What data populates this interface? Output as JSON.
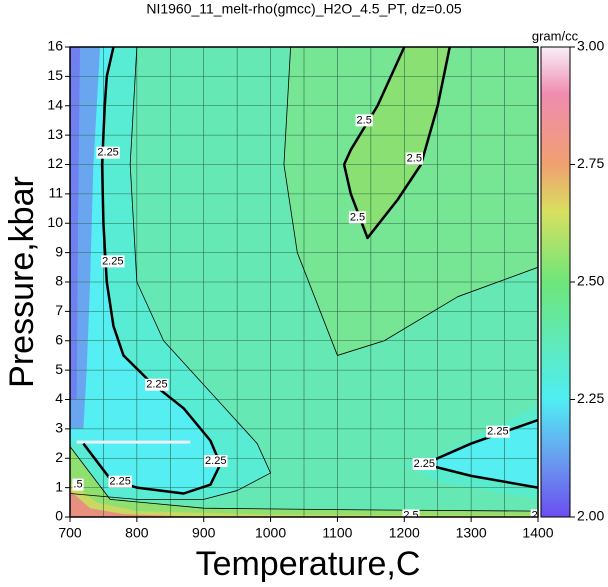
{
  "chart_data": {
    "type": "contour",
    "title": "NI1960_11_melt-rho(gmcc)_H2O_4.5_PT, dz=0.05",
    "xlabel": "Temperature,C",
    "ylabel": "Pressure,kbar",
    "xlim": [
      700,
      1400
    ],
    "ylim": [
      0,
      16
    ],
    "xticks": [
      700,
      800,
      900,
      1000,
      1100,
      1200,
      1300,
      1400
    ],
    "yticks": [
      0,
      1,
      2,
      3,
      4,
      5,
      6,
      7,
      8,
      9,
      10,
      11,
      12,
      13,
      14,
      15,
      16
    ],
    "xgrid": [
      700,
      750,
      800,
      850,
      900,
      950,
      1000,
      1050,
      1100,
      1150,
      1200,
      1250,
      1300,
      1350,
      1400
    ],
    "grid_color": "#2a6a4a",
    "regions": [
      {
        "color": "#66e8b4",
        "x": [
          700,
          1400,
          1400,
          700
        ],
        "y": [
          0,
          0,
          16,
          16
        ]
      },
      {
        "color": "#76e594",
        "x": [
          1030,
          1020,
          1040,
          1100,
          1170,
          1280,
          1400,
          1400
        ],
        "y": [
          16,
          12,
          9,
          5.5,
          6,
          7.5,
          8.5,
          16
        ]
      },
      {
        "color": "#8ae072",
        "x": [
          1200,
          1160,
          1120,
          1110,
          1120,
          1145,
          1190,
          1225,
          1250,
          1268
        ],
        "y": [
          16,
          14,
          12.5,
          12,
          11,
          9.5,
          10.8,
          12,
          14,
          16
        ]
      },
      {
        "color": "#58ecd4",
        "x": [
          700,
          800,
          790,
          800,
          840,
          920,
          980,
          1000,
          950,
          900,
          800,
          700
        ],
        "y": [
          16,
          16,
          12,
          8,
          6,
          4,
          2.5,
          1.5,
          0.9,
          0.6,
          0.6,
          0.8
        ]
      },
      {
        "color": "#55eef2",
        "x": [
          700,
          765,
          755,
          752,
          748,
          750,
          755,
          765,
          780,
          820,
          870,
          910,
          925,
          910,
          870,
          800,
          760,
          720,
          700
        ],
        "y": [
          16,
          16,
          15,
          14,
          12,
          10,
          8,
          6.5,
          5.5,
          4.6,
          3.7,
          2.6,
          1.8,
          1.1,
          0.8,
          1,
          1.3,
          2.5,
          2.6
        ]
      },
      {
        "color": "#6aa6f0",
        "x": [
          700,
          745,
          735,
          730,
          725,
          720,
          700
        ],
        "y": [
          16,
          16,
          12,
          8,
          5,
          3,
          3
        ]
      },
      {
        "color": "#7080f0",
        "x": [
          700,
          715,
          712,
          710,
          700
        ],
        "y": [
          16,
          16,
          10,
          4,
          4
        ]
      },
      {
        "color": "#58eccc",
        "x": [
          1400,
          1250,
          1200,
          1250,
          1400
        ],
        "y": [
          3.8,
          2.1,
          1.8,
          1.2,
          0.6
        ]
      },
      {
        "color": "#55eef2",
        "x": [
          1400,
          1300,
          1230,
          1300,
          1400
        ],
        "y": [
          3.3,
          2.5,
          1.8,
          1.4,
          1.0
        ]
      },
      {
        "color": "#90e070",
        "x": [
          700,
          720,
          760,
          900,
          1100,
          1400,
          1400,
          700
        ],
        "y": [
          2.4,
          1.8,
          0.6,
          0.3,
          0.25,
          0.2,
          0,
          0
        ]
      },
      {
        "color": "#c8d860",
        "x": [
          700,
          740,
          800,
          1000,
          1400,
          1400,
          700
        ],
        "y": [
          1.2,
          0.5,
          0.2,
          0.08,
          0.05,
          0,
          0
        ]
      },
      {
        "color": "#e89080",
        "x": [
          700,
          730,
          780,
          900,
          700
        ],
        "y": [
          0.9,
          0.3,
          0.1,
          0,
          0
        ]
      }
    ],
    "contours": [
      {
        "level": 2.25,
        "width": 2.5,
        "x": [
          720,
          760,
          800,
          870,
          910,
          925,
          910,
          870,
          820,
          780,
          765,
          755,
          750,
          748,
          752,
          755,
          765
        ],
        "y": [
          2.5,
          1.3,
          1.0,
          0.8,
          1.1,
          1.8,
          2.6,
          3.7,
          4.6,
          5.5,
          6.5,
          8,
          10,
          12,
          14,
          15,
          16
        ],
        "labels": [
          {
            "text": "2.25",
            "x": 757,
            "y": 12.4
          },
          {
            "text": "2.25",
            "x": 764,
            "y": 8.7
          },
          {
            "text": "2.25",
            "x": 830,
            "y": 4.5
          },
          {
            "text": "2.25",
            "x": 918,
            "y": 1.9
          },
          {
            "text": "2.25",
            "x": 775,
            "y": 1.2
          }
        ]
      },
      {
        "level": 2.5,
        "width": 2.5,
        "x": [
          1200,
          1160,
          1120,
          1110,
          1120,
          1145,
          1190,
          1225,
          1250,
          1268
        ],
        "y": [
          16,
          14,
          12.5,
          12,
          11,
          9.5,
          10.8,
          12,
          14,
          16
        ],
        "labels": [
          {
            "text": "2.5",
            "x": 1140,
            "y": 13.5
          },
          {
            "text": "2.5",
            "x": 1130,
            "y": 10.2
          },
          {
            "text": "2.5",
            "x": 1215,
            "y": 12.2
          }
        ]
      },
      {
        "level": 2.25,
        "width": 2.5,
        "x": [
          1400,
          1300,
          1230,
          1300,
          1400
        ],
        "y": [
          3.3,
          2.5,
          1.8,
          1.4,
          1.0
        ],
        "labels": [
          {
            "text": "2.25",
            "x": 1340,
            "y": 2.9
          },
          {
            "text": "2.25",
            "x": 1230,
            "y": 1.8
          }
        ]
      },
      {
        "level": 2.4,
        "width": 0.8,
        "x": [
          800,
          790,
          800,
          840,
          920,
          980,
          1000,
          950,
          900,
          800,
          700
        ],
        "y": [
          16,
          12,
          8,
          6,
          4,
          2.5,
          1.5,
          0.9,
          0.6,
          0.6,
          0.8
        ],
        "labels": []
      },
      {
        "level": 2.45,
        "width": 0.8,
        "x": [
          1030,
          1020,
          1040,
          1100,
          1170,
          1280,
          1400
        ],
        "y": [
          16,
          12,
          9,
          5.5,
          6,
          7.5,
          8.5
        ],
        "labels": []
      },
      {
        "level": 2.55,
        "width": 0.8,
        "x": [
          700,
          720,
          760,
          900,
          1100,
          1400
        ],
        "y": [
          2.4,
          1.8,
          0.6,
          0.3,
          0.25,
          0.2
        ],
        "labels": [
          {
            "text": ".5",
            "x": 712,
            "y": 1.1
          },
          {
            "text": "2.5",
            "x": 1210,
            "y": 0.05
          },
          {
            "text": "2",
            "x": 1395,
            "y": 0.05
          }
        ]
      }
    ],
    "highlight": {
      "color": "#e8f0f8",
      "x": [
        710,
        880
      ],
      "y": [
        2.55,
        2.55
      ]
    },
    "colorbar": {
      "label": "gram/cc",
      "lim": [
        2,
        3
      ],
      "ticks": [
        {
          "value": 2,
          "label": "2.00"
        },
        {
          "value": 2.25,
          "label": "2.25"
        },
        {
          "value": 2.5,
          "label": "2.50"
        },
        {
          "value": 2.75,
          "label": "2.75"
        },
        {
          "value": 3,
          "label": "3.00"
        }
      ],
      "stops": [
        {
          "value": 2,
          "color": "#6a4ef0"
        },
        {
          "value": 2.12,
          "color": "#6a9af0"
        },
        {
          "value": 2.25,
          "color": "#50eef4"
        },
        {
          "value": 2.5,
          "color": "#6ee67a"
        },
        {
          "value": 2.65,
          "color": "#d8e060"
        },
        {
          "value": 2.75,
          "color": "#f0a070"
        },
        {
          "value": 2.9,
          "color": "#f08cb0"
        },
        {
          "value": 3,
          "color": "#f8f0f8"
        }
      ]
    }
  }
}
